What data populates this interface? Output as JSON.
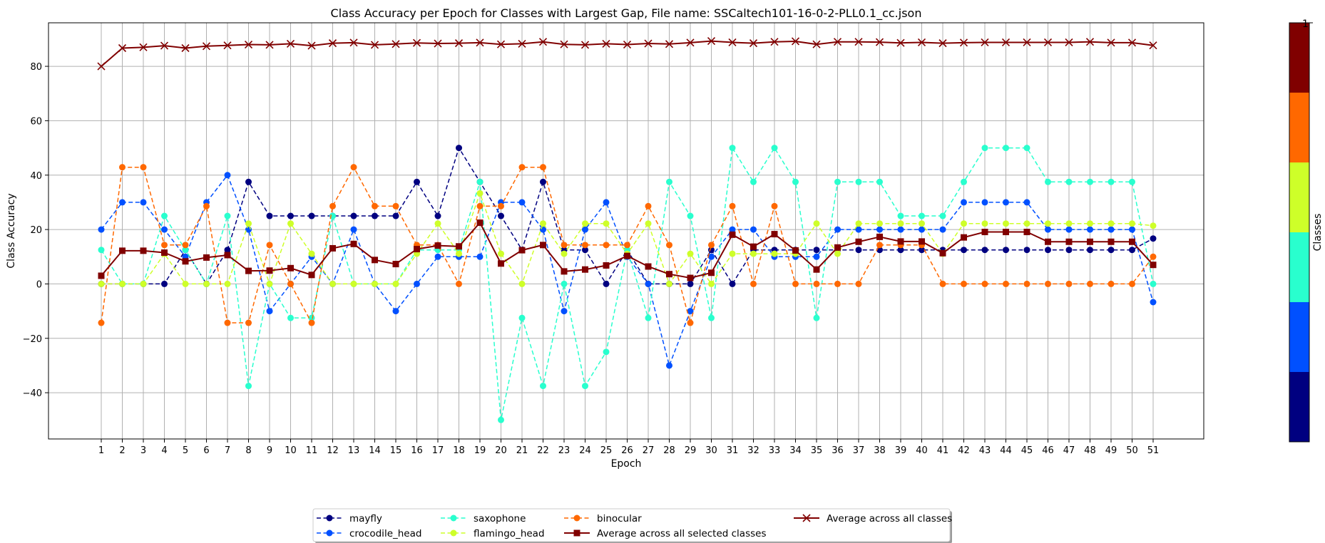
{
  "chart_data": {
    "type": "line",
    "title": "Class Accuracy per Epoch for Classes with Largest Gap, File name: SSCaltech101-16-0-2-PLL0.1_cc.json",
    "xlabel": "Epoch",
    "ylabel": "Class Accuracy",
    "x": [
      1,
      2,
      3,
      4,
      5,
      6,
      7,
      8,
      9,
      10,
      11,
      12,
      13,
      14,
      15,
      16,
      17,
      18,
      19,
      20,
      21,
      22,
      23,
      24,
      25,
      26,
      27,
      28,
      29,
      30,
      31,
      32,
      33,
      34,
      35,
      36,
      37,
      38,
      39,
      40,
      41,
      42,
      43,
      44,
      45,
      46,
      47,
      48,
      49,
      50,
      51
    ],
    "ylim": [
      -57,
      96
    ],
    "yticks": [
      -40,
      -20,
      0,
      20,
      40,
      60,
      80
    ],
    "grid": true,
    "legend_position": "bottom-center",
    "series": [
      {
        "name": "mayfly",
        "color": "#000080",
        "dash": true,
        "marker": "circle",
        "values": [
          0,
          0,
          0,
          0,
          12.5,
          0,
          12.5,
          37.5,
          25,
          25,
          25,
          25,
          25,
          25,
          25,
          37.5,
          25,
          50,
          37.5,
          25,
          12.5,
          37.5,
          12.5,
          12.5,
          0,
          12.5,
          0,
          0,
          0,
          12.5,
          0,
          12.5,
          12.5,
          12.5,
          12.5,
          12.5,
          12.5,
          12.5,
          12.5,
          12.5,
          12.5,
          12.5,
          12.5,
          12.5,
          12.5,
          12.5,
          12.5,
          12.5,
          12.5,
          12.5,
          16.7
        ]
      },
      {
        "name": "crocodile_head",
        "color": "#0050ff",
        "dash": true,
        "marker": "circle",
        "values": [
          20,
          30,
          30,
          20,
          10,
          30,
          40,
          20,
          -10,
          0,
          10,
          0,
          20,
          0,
          -10,
          0,
          10,
          10,
          10,
          30,
          30,
          20,
          -10,
          20,
          30,
          10,
          0,
          -30,
          -10,
          10,
          20,
          20,
          10,
          10,
          10,
          20,
          20,
          20,
          20,
          20,
          20,
          30,
          30,
          30,
          30,
          20,
          20,
          20,
          20,
          20,
          -6.7
        ]
      },
      {
        "name": "saxophone",
        "color": "#29ffce",
        "dash": true,
        "marker": "circle",
        "values": [
          12.5,
          0,
          0,
          25,
          12.5,
          0,
          25,
          -37.5,
          0,
          -12.5,
          -12.5,
          25,
          0,
          0,
          0,
          12.5,
          12.5,
          12.5,
          37.5,
          -50,
          -12.5,
          -37.5,
          0,
          -37.5,
          -25,
          12.5,
          -12.5,
          37.5,
          25,
          -12.5,
          50,
          37.5,
          50,
          37.5,
          -12.5,
          37.5,
          37.5,
          37.5,
          25,
          25,
          25,
          37.5,
          50,
          50,
          50,
          37.5,
          37.5,
          37.5,
          37.5,
          37.5,
          0
        ]
      },
      {
        "name": "flamingo_head",
        "color": "#ceff29",
        "dash": true,
        "marker": "circle",
        "values": [
          0,
          0,
          0,
          11.1,
          0,
          0,
          0,
          22.2,
          0,
          22.2,
          11.1,
          0,
          0,
          0,
          0,
          11.1,
          22.2,
          11.1,
          33.3,
          11.1,
          0,
          22.2,
          11.1,
          22.2,
          22.2,
          11.1,
          22.2,
          0,
          11.1,
          0,
          11.1,
          11.1,
          11.1,
          11.1,
          22.2,
          11.1,
          22.2,
          22.2,
          22.2,
          22.2,
          11.1,
          22.2,
          22.2,
          22.2,
          22.2,
          22.2,
          22.2,
          22.2,
          22.2,
          22.2,
          21.4
        ]
      },
      {
        "name": "binocular",
        "color": "#ff6800",
        "dash": true,
        "marker": "circle",
        "values": [
          -14.3,
          42.9,
          42.9,
          14.3,
          14.3,
          28.6,
          -14.3,
          -14.3,
          14.3,
          0,
          -14.3,
          28.6,
          42.9,
          28.6,
          28.6,
          14.3,
          14.3,
          0,
          28.6,
          28.6,
          42.9,
          42.9,
          14.3,
          14.3,
          14.3,
          14.3,
          28.6,
          14.3,
          -14.3,
          14.3,
          28.6,
          0,
          28.6,
          0,
          0,
          0,
          0,
          14.3,
          14.3,
          14.3,
          0,
          0,
          0,
          0,
          0,
          0,
          0,
          0,
          0,
          0,
          10
        ]
      },
      {
        "name": "Average across all selected classes",
        "color": "#800000",
        "dash": false,
        "marker": "square",
        "values": [
          3,
          12.2,
          12.2,
          11.5,
          8.3,
          9.7,
          10.6,
          4.8,
          4.9,
          5.8,
          3.3,
          13.1,
          14.7,
          8.8,
          7.3,
          12.8,
          14.1,
          13.8,
          22.5,
          7.5,
          12.4,
          14.3,
          4.6,
          5.3,
          6.8,
          10.3,
          6.4,
          3.6,
          2.2,
          4.1,
          18.1,
          13.7,
          18.3,
          12.3,
          5.3,
          13.4,
          15.5,
          17.3,
          15.6,
          15.6,
          11.3,
          17.1,
          19.1,
          19.1,
          19.1,
          15.5,
          15.5,
          15.5,
          15.5,
          15.5,
          7
        ]
      },
      {
        "name": "Average across all classes",
        "color": "#800000",
        "dash": false,
        "marker": "x",
        "values": [
          80,
          86.7,
          87,
          87.6,
          86.7,
          87.4,
          87.7,
          88,
          87.9,
          88.3,
          87.6,
          88.5,
          88.7,
          87.9,
          88.2,
          88.6,
          88.4,
          88.5,
          88.7,
          88.1,
          88.3,
          89,
          88.1,
          87.9,
          88.3,
          88,
          88.4,
          88.2,
          88.7,
          89.3,
          88.8,
          88.5,
          89,
          89.2,
          88.1,
          89,
          89,
          88.9,
          88.6,
          88.8,
          88.5,
          88.7,
          88.8,
          88.8,
          88.8,
          88.8,
          88.8,
          89,
          88.7,
          88.7,
          87.7
        ]
      }
    ],
    "colorbar": {
      "label": "Classes",
      "top_tick": "1",
      "colors": [
        "#800000",
        "#ff6800",
        "#ceff29",
        "#29ffce",
        "#0050ff",
        "#000080"
      ]
    }
  }
}
